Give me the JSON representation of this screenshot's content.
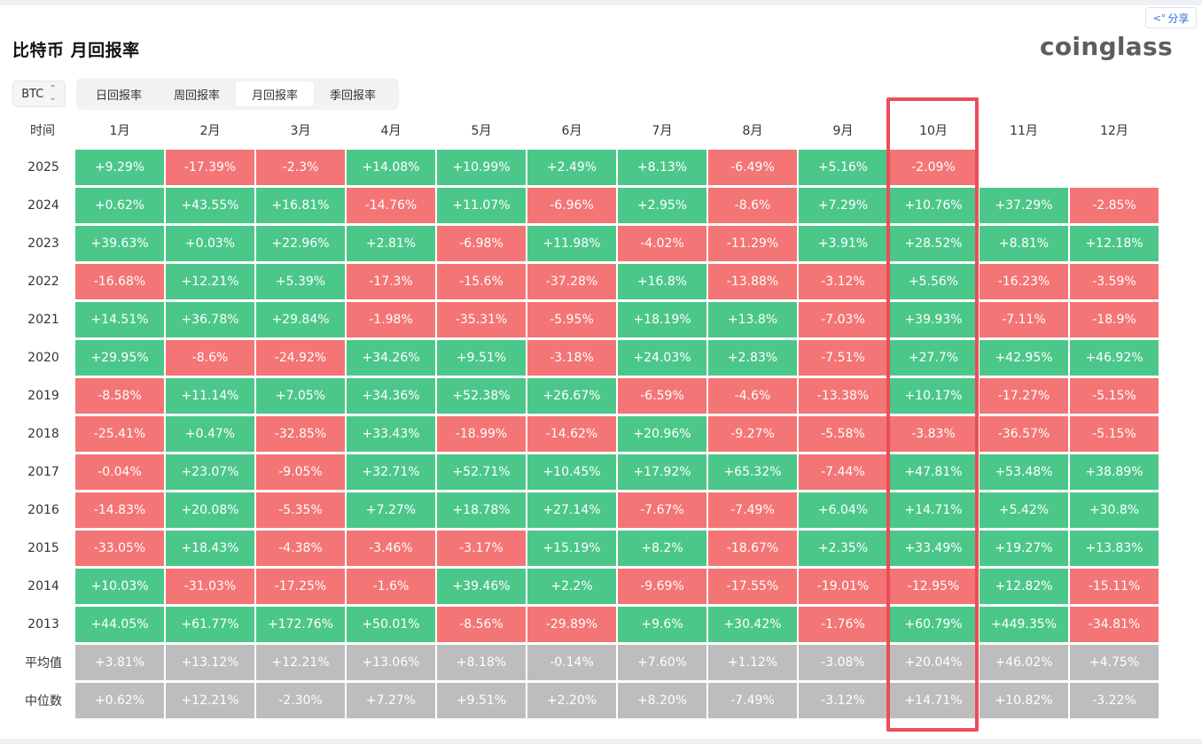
{
  "header": {
    "title": "比特币 月回报率",
    "logo": "coinglass",
    "share_label": "分享"
  },
  "controls": {
    "coin": "BTC",
    "tabs": [
      {
        "label": "日回报率",
        "active": false
      },
      {
        "label": "周回报率",
        "active": false
      },
      {
        "label": "月回报率",
        "active": true
      },
      {
        "label": "季回报率",
        "active": false
      }
    ]
  },
  "table": {
    "corner_label": "时间",
    "months": [
      "1月",
      "2月",
      "3月",
      "4月",
      "5月",
      "6月",
      "7月",
      "8月",
      "9月",
      "10月",
      "11月",
      "12月"
    ],
    "rows": [
      {
        "year": "2025",
        "values": [
          "+9.29%",
          "-17.39%",
          "-2.3%",
          "+14.08%",
          "+10.99%",
          "+2.49%",
          "+8.13%",
          "-6.49%",
          "+5.16%",
          "-2.09%",
          "",
          ""
        ]
      },
      {
        "year": "2024",
        "values": [
          "+0.62%",
          "+43.55%",
          "+16.81%",
          "-14.76%",
          "+11.07%",
          "-6.96%",
          "+2.95%",
          "-8.6%",
          "+7.29%",
          "+10.76%",
          "+37.29%",
          "-2.85%"
        ]
      },
      {
        "year": "2023",
        "values": [
          "+39.63%",
          "+0.03%",
          "+22.96%",
          "+2.81%",
          "-6.98%",
          "+11.98%",
          "-4.02%",
          "-11.29%",
          "+3.91%",
          "+28.52%",
          "+8.81%",
          "+12.18%"
        ]
      },
      {
        "year": "2022",
        "values": [
          "-16.68%",
          "+12.21%",
          "+5.39%",
          "-17.3%",
          "-15.6%",
          "-37.28%",
          "+16.8%",
          "-13.88%",
          "-3.12%",
          "+5.56%",
          "-16.23%",
          "-3.59%"
        ]
      },
      {
        "year": "2021",
        "values": [
          "+14.51%",
          "+36.78%",
          "+29.84%",
          "-1.98%",
          "-35.31%",
          "-5.95%",
          "+18.19%",
          "+13.8%",
          "-7.03%",
          "+39.93%",
          "-7.11%",
          "-18.9%"
        ]
      },
      {
        "year": "2020",
        "values": [
          "+29.95%",
          "-8.6%",
          "-24.92%",
          "+34.26%",
          "+9.51%",
          "-3.18%",
          "+24.03%",
          "+2.83%",
          "-7.51%",
          "+27.7%",
          "+42.95%",
          "+46.92%"
        ]
      },
      {
        "year": "2019",
        "values": [
          "-8.58%",
          "+11.14%",
          "+7.05%",
          "+34.36%",
          "+52.38%",
          "+26.67%",
          "-6.59%",
          "-4.6%",
          "-13.38%",
          "+10.17%",
          "-17.27%",
          "-5.15%"
        ]
      },
      {
        "year": "2018",
        "values": [
          "-25.41%",
          "+0.47%",
          "-32.85%",
          "+33.43%",
          "-18.99%",
          "-14.62%",
          "+20.96%",
          "-9.27%",
          "-5.58%",
          "-3.83%",
          "-36.57%",
          "-5.15%"
        ]
      },
      {
        "year": "2017",
        "values": [
          "-0.04%",
          "+23.07%",
          "-9.05%",
          "+32.71%",
          "+52.71%",
          "+10.45%",
          "+17.92%",
          "+65.32%",
          "-7.44%",
          "+47.81%",
          "+53.48%",
          "+38.89%"
        ]
      },
      {
        "year": "2016",
        "values": [
          "-14.83%",
          "+20.08%",
          "-5.35%",
          "+7.27%",
          "+18.78%",
          "+27.14%",
          "-7.67%",
          "-7.49%",
          "+6.04%",
          "+14.71%",
          "+5.42%",
          "+30.8%"
        ]
      },
      {
        "year": "2015",
        "values": [
          "-33.05%",
          "+18.43%",
          "-4.38%",
          "-3.46%",
          "-3.17%",
          "+15.19%",
          "+8.2%",
          "-18.67%",
          "+2.35%",
          "+33.49%",
          "+19.27%",
          "+13.83%"
        ]
      },
      {
        "year": "2014",
        "values": [
          "+10.03%",
          "-31.03%",
          "-17.25%",
          "-1.6%",
          "+39.46%",
          "+2.2%",
          "-9.69%",
          "-17.55%",
          "-19.01%",
          "-12.95%",
          "+12.82%",
          "-15.11%"
        ]
      },
      {
        "year": "2013",
        "values": [
          "+44.05%",
          "+61.77%",
          "+172.76%",
          "+50.01%",
          "-8.56%",
          "-29.89%",
          "+9.6%",
          "+30.42%",
          "-1.76%",
          "+60.79%",
          "+449.35%",
          "-34.81%"
        ]
      }
    ],
    "stats": [
      {
        "label": "平均值",
        "values": [
          "+3.81%",
          "+13.12%",
          "+12.21%",
          "+13.06%",
          "+8.18%",
          "-0.14%",
          "+7.60%",
          "+1.12%",
          "-3.08%",
          "+20.04%",
          "+46.02%",
          "+4.75%"
        ]
      },
      {
        "label": "中位数",
        "values": [
          "+0.62%",
          "+12.21%",
          "-2.30%",
          "+7.27%",
          "+9.51%",
          "+2.20%",
          "+8.20%",
          "-7.49%",
          "-3.12%",
          "+14.71%",
          "+10.82%",
          "-3.22%"
        ]
      }
    ],
    "highlighted_month": "10月"
  },
  "colors": {
    "positive": "#4cc78a",
    "negative": "#f47575",
    "stat": "#bdbdbd",
    "highlight": "#ea4e58"
  }
}
